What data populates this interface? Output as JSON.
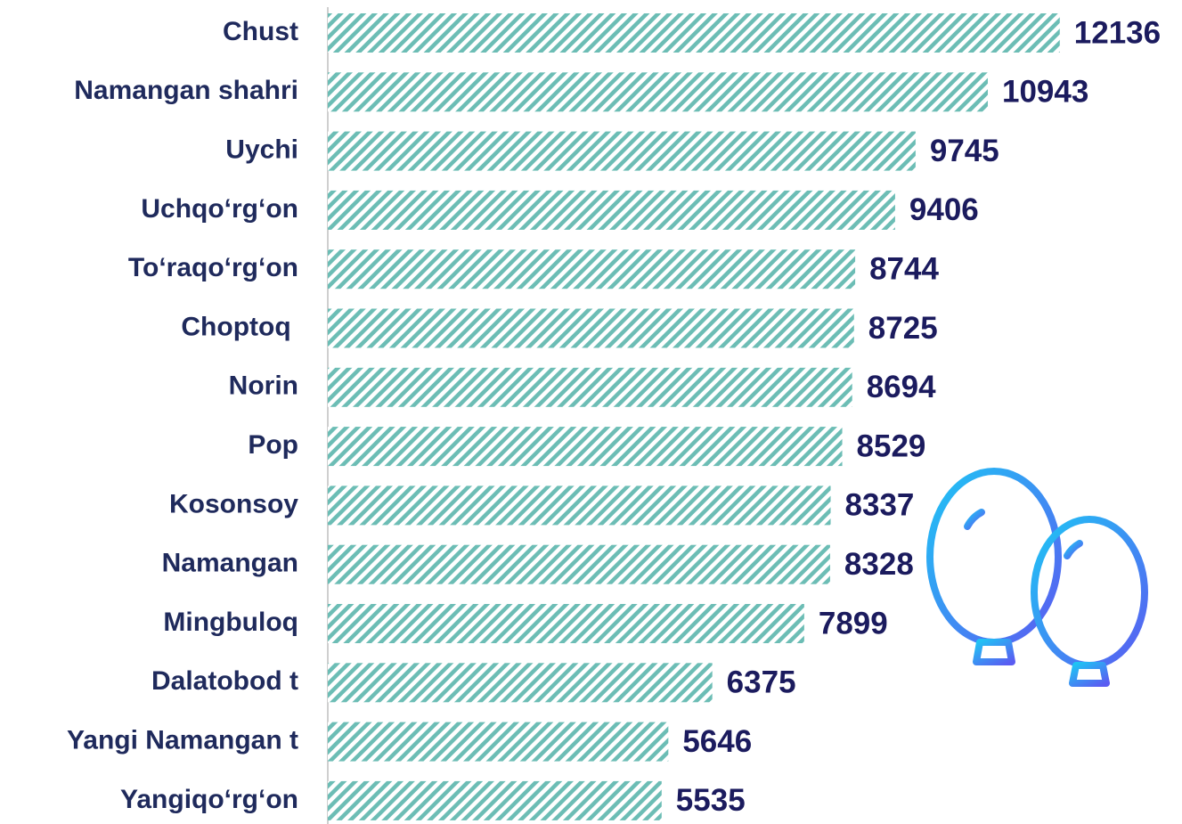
{
  "chart_data": {
    "type": "bar",
    "orientation": "horizontal",
    "categories": [
      "Chust",
      "Namangan shahri",
      "Uychi",
      "Uchqo‘rg‘on",
      "To‘raqo‘rg‘on",
      "Choptoq ",
      "Norin",
      "Pop",
      "Kosonsoy",
      "Namangan",
      "Mingbuloq",
      "Dalatobod t",
      "Yangi Namangan t",
      "Yangiqo‘rg‘on"
    ],
    "values": [
      12136,
      10943,
      9745,
      9406,
      8744,
      8725,
      8694,
      8529,
      8337,
      8328,
      7899,
      6375,
      5646,
      5535
    ],
    "color": "#6cbdb5",
    "fill_style": "hatch",
    "xlim": [
      0,
      14000
    ]
  }
}
